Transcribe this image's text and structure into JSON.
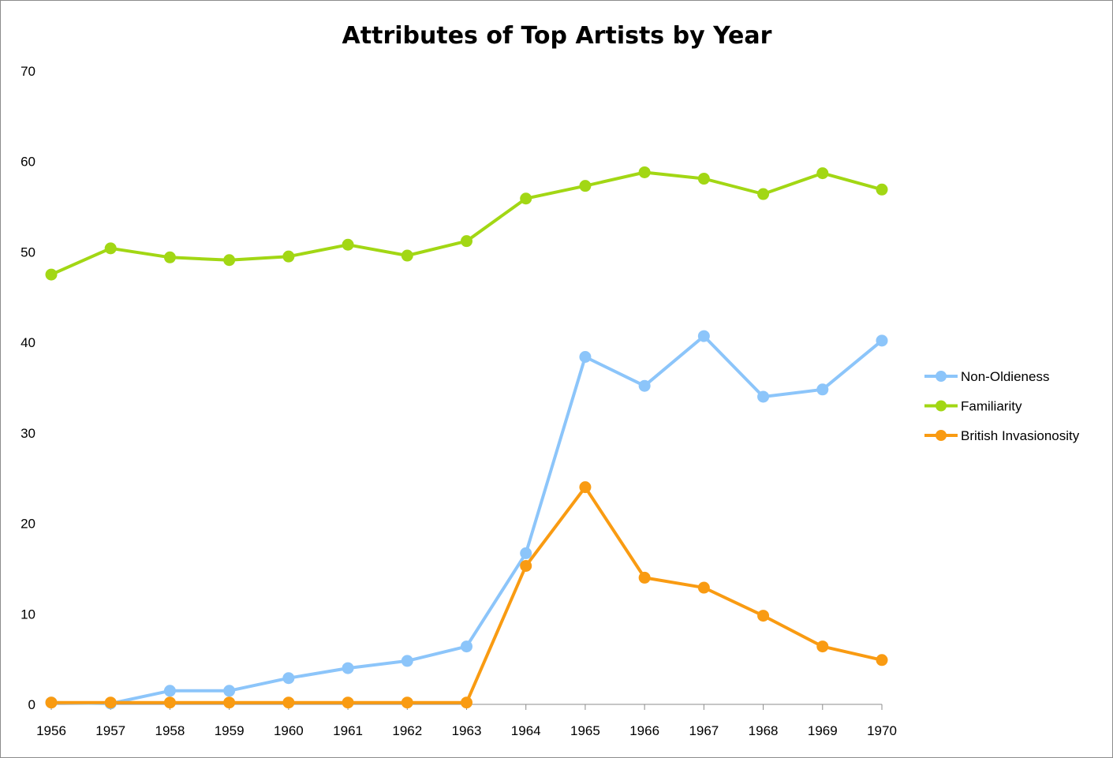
{
  "chart_data": {
    "type": "line",
    "title": "Attributes of Top Artists by Year",
    "xlabel": "",
    "ylabel": "",
    "ylim": [
      0,
      70
    ],
    "y_ticks": [
      "0",
      "10",
      "20",
      "30",
      "40",
      "50",
      "60",
      "70"
    ],
    "categories": [
      "1956",
      "1957",
      "1958",
      "1959",
      "1960",
      "1961",
      "1962",
      "1963",
      "1964",
      "1965",
      "1966",
      "1967",
      "1968",
      "1969",
      "1970"
    ],
    "grid": false,
    "legend_position": "right",
    "series": [
      {
        "name": "Non-Oldieness",
        "color": "#8cc5fa",
        "values": [
          0.2,
          0.1,
          1.5,
          1.5,
          2.9,
          4.0,
          4.8,
          6.4,
          16.7,
          38.4,
          35.2,
          40.7,
          34.0,
          34.8,
          40.2
        ]
      },
      {
        "name": "Familiarity",
        "color": "#a2d714",
        "values": [
          47.5,
          50.4,
          49.4,
          49.1,
          49.5,
          50.8,
          49.6,
          51.2,
          55.9,
          57.3,
          58.8,
          58.1,
          56.4,
          58.7,
          56.9
        ]
      },
      {
        "name": "British Invasionosity",
        "color": "#f99b12",
        "values": [
          0.2,
          0.2,
          0.2,
          0.2,
          0.2,
          0.2,
          0.2,
          0.2,
          15.3,
          24.0,
          14.0,
          12.9,
          9.8,
          6.4,
          4.9
        ]
      }
    ]
  }
}
